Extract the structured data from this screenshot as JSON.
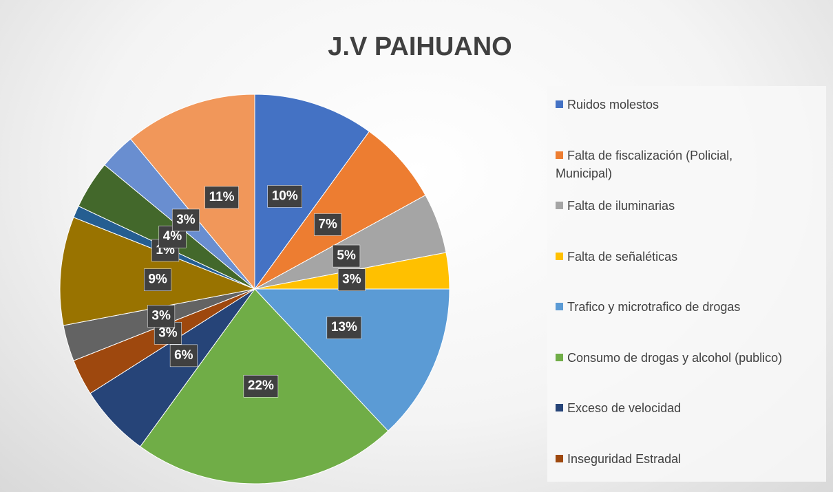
{
  "chart_data": {
    "type": "pie",
    "title": "J.V PAIHUANO",
    "categories": [
      "Ruidos molestos",
      "Falta de fiscalización (Policial, Municipal)",
      "Falta de iluminarias",
      "Falta de señaléticas",
      "Trafico y microtrafico de drogas",
      "Consumo de drogas y alcohol (publico)",
      "Exceso de velocidad",
      "Inseguridad Estradal",
      null,
      null,
      null,
      null,
      null,
      null
    ],
    "values": [
      10,
      7,
      5,
      3,
      13,
      22,
      6,
      3,
      3,
      9,
      1,
      4,
      3,
      11
    ],
    "value_labels": [
      "10%",
      "7%",
      "5%",
      "3%",
      "13%",
      "22%",
      "6%",
      "3%",
      "3%",
      "9%",
      "1%",
      "4%",
      "3%",
      "11%"
    ],
    "colors": [
      "#4472c4",
      "#ed7d31",
      "#a5a5a5",
      "#ffc000",
      "#5b9bd5",
      "#70ad47",
      "#264478",
      "#9e480e",
      "#636363",
      "#997300",
      "#255e91",
      "#43682b",
      "#698ed0",
      "#f1975a"
    ],
    "legend": "right"
  }
}
